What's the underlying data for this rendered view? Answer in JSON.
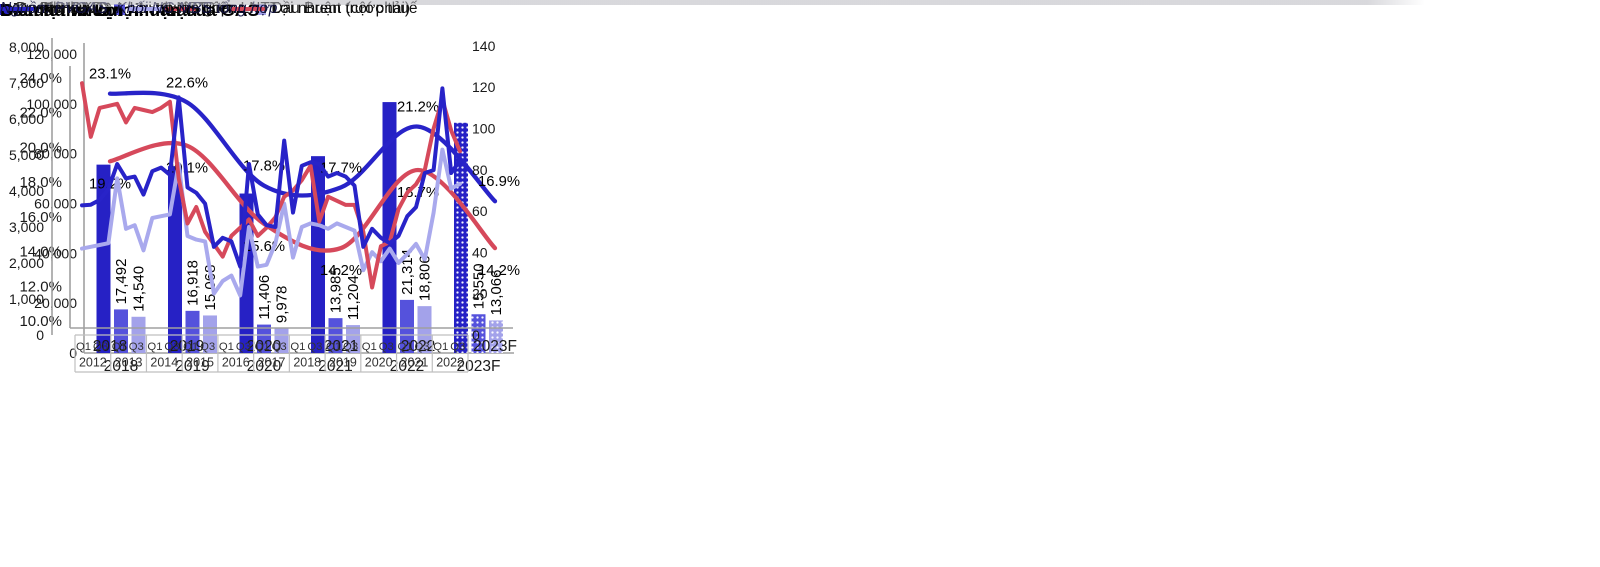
{
  "source_note": "Nguồn: PVGAS, Khối NC MBS tổng hợp",
  "chart_data": [
    {
      "type": "bar",
      "title": "Doanh thu và lợi nhuận",
      "categories": [
        "2018",
        "2019",
        "2020",
        "2021",
        "2022",
        "2023F"
      ],
      "forecast_index": 5,
      "ylim": [
        0,
        120000
      ],
      "ytick_labels": [
        "0",
        "20,000",
        "40,000",
        "60,000",
        "80,000",
        "100,000",
        "120,000"
      ],
      "grid": false,
      "legend_position": "bottom",
      "series": [
        {
          "name": "Doanh thu",
          "color": "#2621C5",
          "values": [
            75600,
            75000,
            64000,
            79000,
            100700,
            92400
          ]
        },
        {
          "name": "Lợi nhuận gộp",
          "color": "#5552DC",
          "values": [
            17492,
            16918,
            11406,
            13985,
            21314,
            15550
          ],
          "labels": [
            "17,492",
            "16,918",
            "11,406",
            "13,985",
            "21,314",
            "15,550"
          ]
        },
        {
          "name": "Lợi nhuận trước thuế",
          "color": "#A3A2EA",
          "values": [
            14540,
            15068,
            9978,
            11204,
            18806,
            13066
          ],
          "labels": [
            "14,540",
            "15,068",
            "9,978",
            "11,204",
            "18,806",
            "13,066"
          ]
        }
      ]
    },
    {
      "type": "line",
      "title": "Biên lợi nhuận",
      "categories": [
        "2018",
        "2019",
        "2020",
        "2021",
        "2022",
        "2023F"
      ],
      "ylim": [
        10,
        24
      ],
      "ytick_labels": [
        "10.0%",
        "12.0%",
        "14.0%",
        "16.0%",
        "18.0%",
        "20.0%",
        "22.0%",
        "24.0%"
      ],
      "grid": false,
      "legend_position": "bottom",
      "series": [
        {
          "name": "Biên LNG",
          "color": "#2823C8",
          "label_side": "above",
          "values": [
            23.1,
            22.6,
            17.8,
            17.7,
            21.2,
            16.9
          ],
          "point_labels": [
            "23.1%",
            "22.6%",
            "17.8%",
            "17.7%",
            "21.2%",
            "16.9%"
          ]
        },
        {
          "name": "Biên LNTT",
          "color": "#D6495B",
          "label_side": "below",
          "values": [
            19.2,
            20.1,
            15.6,
            14.2,
            18.7,
            14.2
          ],
          "point_labels": [
            "19.2%",
            "20.1%",
            "15.6%",
            "14.2%",
            "18.7%",
            "14.2%"
          ]
        }
      ]
    },
    {
      "type": "line",
      "title": "Giá dầu và Lợi nhuận của GAS",
      "x_years": [
        "2012",
        "2013",
        "2014",
        "2015",
        "2016",
        "2017",
        "2018",
        "2019",
        "2020",
        "2021",
        "2022"
      ],
      "x_quarter_labels": [
        "Q1",
        "Q3"
      ],
      "ylim_left": [
        0,
        8000
      ],
      "ylim_right": [
        0,
        140
      ],
      "ytick_labels_left": [
        "0",
        "1,000",
        "2,000",
        "3,000",
        "4,000",
        "5,000",
        "6,000",
        "7,000",
        "8,000"
      ],
      "ytick_labels_right": [
        "0",
        "20",
        "40",
        "60",
        "80",
        "100",
        "120",
        "140"
      ],
      "grid": false,
      "legend_position": "bottom",
      "series": [
        {
          "name": "LNHĐKD",
          "axis": "left",
          "color": "#2823C8",
          "values": [
            3600,
            3620,
            3750,
            4050,
            4750,
            4350,
            4400,
            3900,
            4550,
            4650,
            4450,
            6600,
            4100,
            3950,
            3650,
            2450,
            2700,
            2600,
            1900,
            4750,
            3350,
            3050,
            3000,
            5400,
            3400,
            4700,
            4800,
            4750,
            4400,
            4500,
            4400,
            4150,
            2450,
            2950,
            2700,
            2550,
            2750,
            3300,
            3550,
            4500,
            4580,
            6850,
            4500,
            4850
          ]
        },
        {
          "name": "LNST",
          "axis": "left",
          "color": "#A9A9ED",
          "values": [
            2400,
            2450,
            2500,
            2550,
            4350,
            2950,
            3050,
            2350,
            3250,
            3300,
            3350,
            4750,
            2750,
            2650,
            2600,
            1150,
            1500,
            1650,
            1100,
            3000,
            1900,
            1950,
            2550,
            3650,
            2150,
            3000,
            3100,
            3050,
            2950,
            3100,
            3000,
            2900,
            1800,
            2300,
            2050,
            2400,
            2000,
            2250,
            2530,
            2100,
            3400,
            5150,
            4070,
            4200
          ]
        },
        {
          "name": "Dầu Brent (cột phải)",
          "axis": "right",
          "color": "#D6495B",
          "values": [
            122,
            96,
            110,
            111,
            112,
            103,
            110,
            109,
            108,
            110,
            113,
            76,
            54,
            62,
            50,
            44,
            38,
            48,
            52,
            56,
            48,
            52,
            57,
            67,
            70,
            75,
            82,
            55,
            67,
            65,
            63,
            63,
            50,
            23,
            43,
            45,
            61,
            69,
            73,
            80,
            100,
            114,
            99,
            89
          ]
        }
      ]
    }
  ]
}
